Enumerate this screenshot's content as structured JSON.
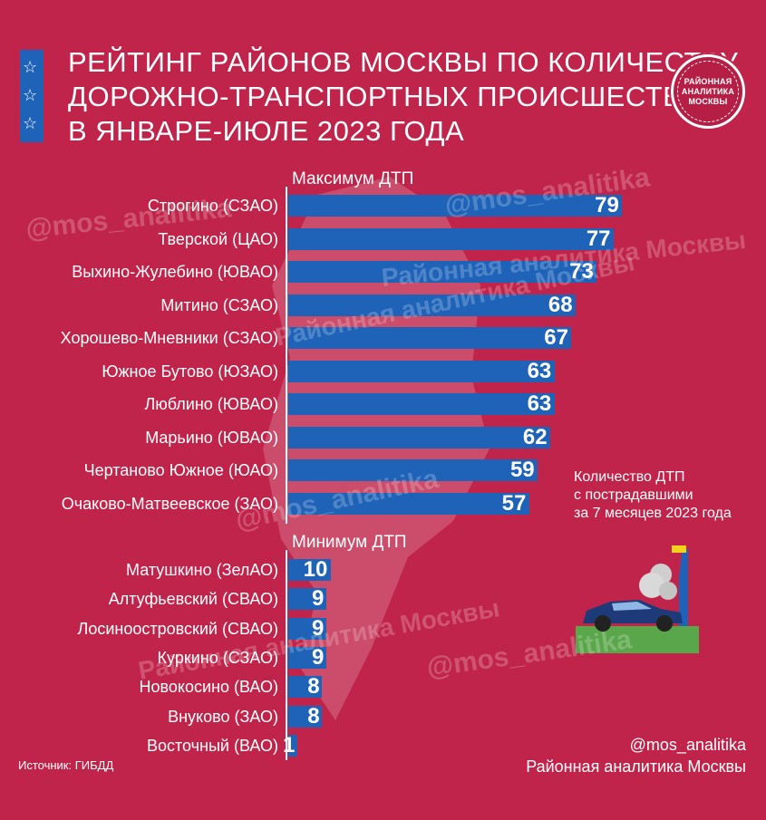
{
  "header": {
    "title_lines": [
      "Рейтинг районов Москвы по количеству",
      "дорожно-транспортных происшествий",
      "в январе-июле 2023 года"
    ],
    "logo_lines": [
      "РАЙОННАЯ",
      "АНАЛИТИКА",
      "МОСКВЫ"
    ]
  },
  "stripe_icons": [
    "star-icon",
    "star-icon",
    "star-icon"
  ],
  "chart_data": [
    {
      "type": "bar",
      "orientation": "horizontal",
      "title": "Максимум ДТП",
      "categories": [
        "Строгино (СЗАО)",
        "Тверской (ЦАО)",
        "Выхино-Жулебино (ЮВАО)",
        "Митино (СЗАО)",
        "Хорошево-Мневники (СЗАО)",
        "Южное Бутово (ЮЗАО)",
        "Люблино (ЮВАО)",
        "Марьино (ЮВАО)",
        "Чертаново Южное (ЮАО)",
        "Очаково-Матвеевское (ЗАО)"
      ],
      "values": [
        79,
        77,
        73,
        68,
        67,
        63,
        63,
        62,
        59,
        57
      ]
    },
    {
      "type": "bar",
      "orientation": "horizontal",
      "title": "Минимум ДТП",
      "categories": [
        "Матушкино (ЗелАО)",
        "Алтуфьевский (СВАО)",
        "Лосиноостровский (СВАО)",
        "Куркино (СЗАО)",
        "Новокосино (ВАО)",
        "Внуково (ЗАО)",
        "Восточный (ВАО)"
      ],
      "values": [
        10,
        9,
        9,
        9,
        8,
        8,
        1
      ]
    }
  ],
  "note_lines": [
    "Количество ДТП",
    "с пострадавшими",
    "за 7 месяцев 2023 года"
  ],
  "source": "Источник: ГИБДД",
  "credit": {
    "handle": "@mos_analitika",
    "name": "Районная аналитика Москвы"
  },
  "watermarks": [
    "@mos_analitika",
    "@mos_analitika",
    "Районная аналитика Москвы",
    "@mos_analitika",
    "Районная аналитика Москвы",
    "@mos_analitika",
    "Районная аналитика Москвы"
  ],
  "colors": {
    "background": "#c0244a",
    "bar": "#1e63b8",
    "text": "#ffffff"
  }
}
